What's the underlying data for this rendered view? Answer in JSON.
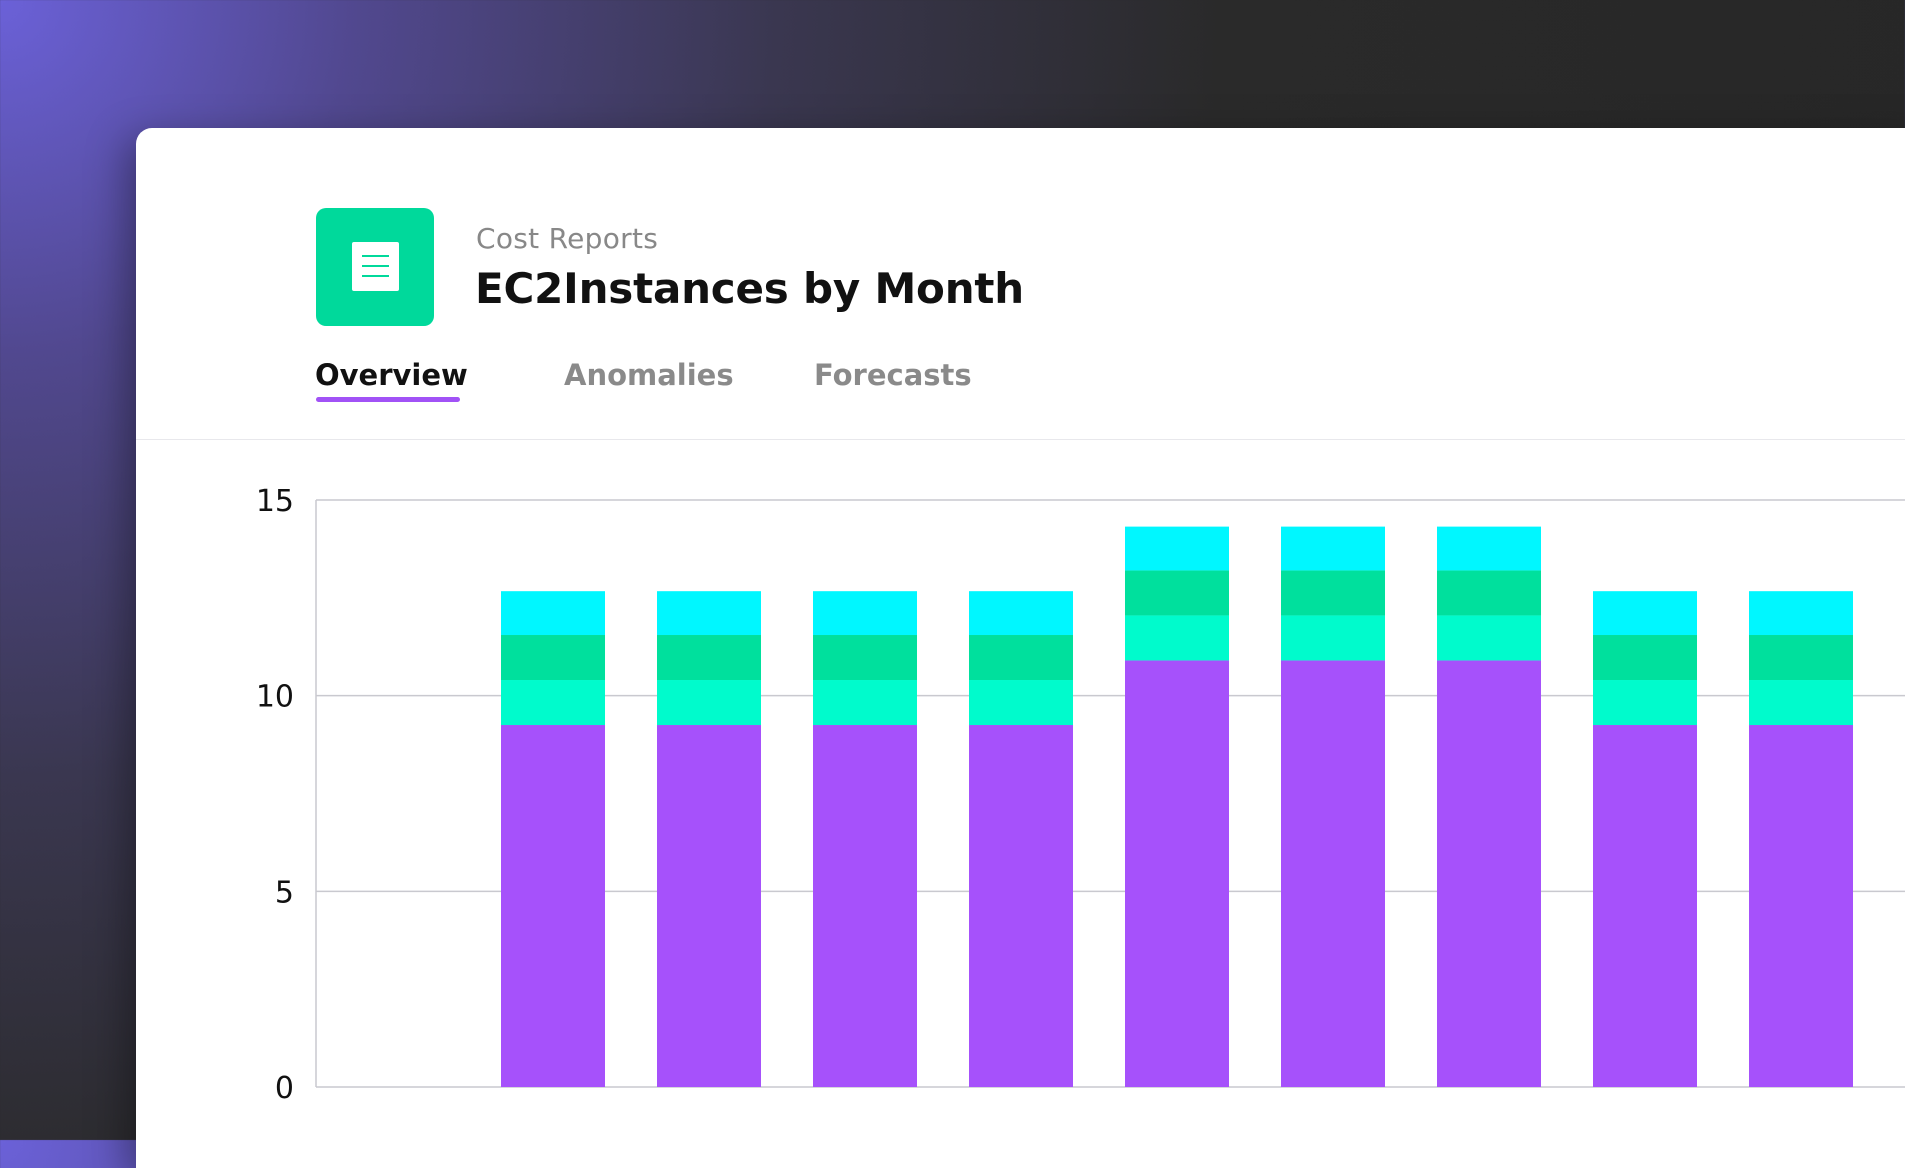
{
  "header": {
    "breadcrumb": "Cost Reports",
    "title": "EC2Instances by Month",
    "icon": "document-list-icon"
  },
  "tabs": [
    {
      "label": "Overview",
      "active": true
    },
    {
      "label": "Anomalies",
      "active": false
    },
    {
      "label": "Forecasts",
      "active": false
    }
  ],
  "colors": {
    "brand_icon": "#00d99b",
    "tab_accent": "#a152f6",
    "series_1": "#a651fb",
    "series_2": "#00fbcc",
    "series_3": "#00e09d",
    "series_4": "#00f7ff"
  },
  "chart_data": {
    "type": "bar",
    "stacked": true,
    "ylim": [
      0,
      15
    ],
    "yticks": [
      0,
      5,
      10,
      15
    ],
    "grid": true,
    "slots": 11,
    "series": [
      {
        "color": "#a651fb",
        "values": [
          null,
          9.25,
          9.25,
          9.25,
          9.25,
          10.9,
          10.9,
          10.9,
          9.25,
          9.25,
          null
        ]
      },
      {
        "color": "#00fbcc",
        "values": [
          null,
          1.15,
          1.15,
          1.15,
          1.15,
          1.15,
          1.15,
          1.15,
          1.15,
          1.15,
          null
        ]
      },
      {
        "color": "#00e09d",
        "values": [
          null,
          1.15,
          1.15,
          1.15,
          1.15,
          1.15,
          1.15,
          1.15,
          1.15,
          1.15,
          null
        ]
      },
      {
        "color": "#00f7ff",
        "values": [
          null,
          1.12,
          1.12,
          1.12,
          1.12,
          1.12,
          1.12,
          1.12,
          1.12,
          1.12,
          null
        ]
      }
    ]
  }
}
